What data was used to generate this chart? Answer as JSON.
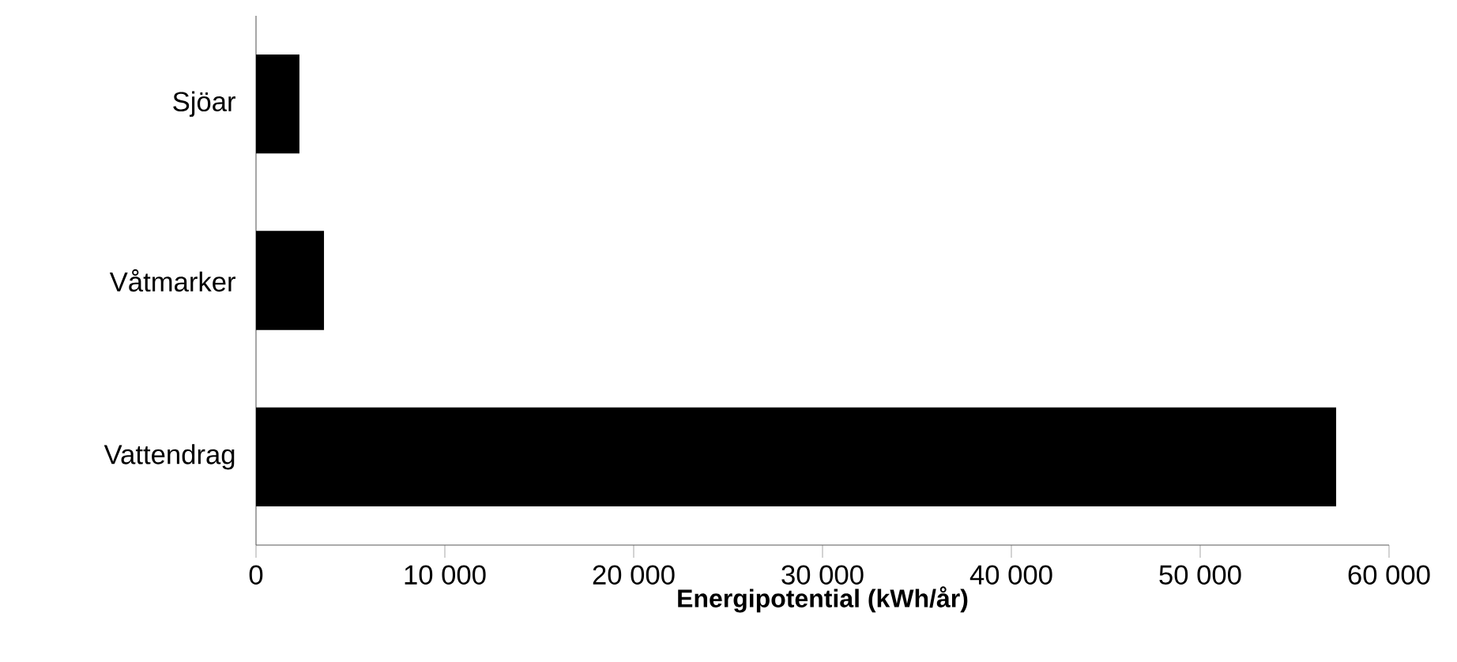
{
  "chart_data": {
    "type": "bar",
    "orientation": "horizontal",
    "xlabel": "Energipotential (kWh/år)",
    "categories": [
      "Sjöar",
      "Våtmarker",
      "Vattendrag"
    ],
    "values": [
      2300,
      3600,
      57200
    ],
    "color": "#000000",
    "xlim": [
      0,
      60000
    ],
    "xticks": [
      0,
      {
        "value": 10000,
        "label": "10 000"
      },
      {
        "value": 20000,
        "label": "20 000"
      },
      {
        "value": 30000,
        "label": "30 000"
      },
      {
        "value": 40000,
        "label": "40 000"
      },
      {
        "value": 50000,
        "label": "50 000"
      },
      {
        "value": 60000,
        "label": "60 000"
      }
    ]
  }
}
